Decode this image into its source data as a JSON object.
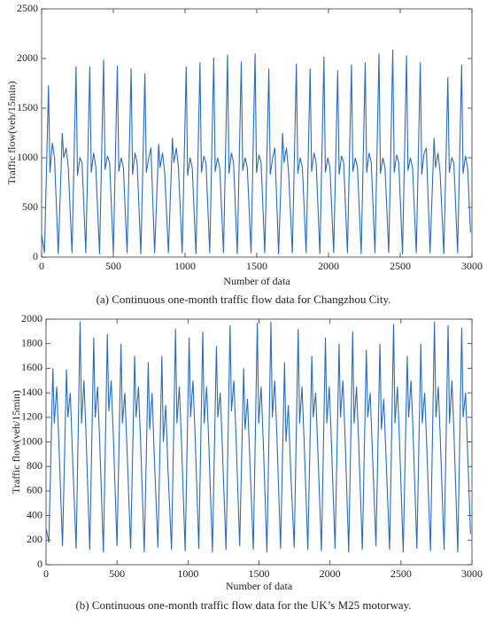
{
  "chart_data": [
    {
      "type": "line",
      "xlabel": "Number of data",
      "ylabel": "Traffic flow(veh/15min)",
      "caption": "(a) Continuous one-month traffic flow data for Changzhou City.",
      "color": "#2b6cb5",
      "xlim": [
        0,
        3000
      ],
      "xticks": [
        0,
        500,
        1000,
        1500,
        2000,
        2500,
        3000
      ],
      "ylim": [
        0,
        2500
      ],
      "yticks": [
        0,
        500,
        1000,
        1500,
        2000,
        2500
      ],
      "x": [
        0,
        20,
        48,
        58,
        75,
        90,
        116,
        144,
        154,
        171,
        186,
        212,
        240,
        250,
        267,
        282,
        308,
        336,
        346,
        363,
        378,
        404,
        432,
        442,
        459,
        474,
        500,
        528,
        538,
        555,
        570,
        596,
        624,
        634,
        651,
        666,
        692,
        720,
        730,
        747,
        762,
        788,
        816,
        826,
        843,
        858,
        884,
        912,
        922,
        939,
        954,
        980,
        1008,
        1018,
        1035,
        1050,
        1076,
        1104,
        1114,
        1131,
        1146,
        1172,
        1200,
        1210,
        1227,
        1242,
        1268,
        1296,
        1306,
        1323,
        1338,
        1364,
        1392,
        1402,
        1419,
        1434,
        1460,
        1488,
        1498,
        1515,
        1530,
        1556,
        1584,
        1594,
        1611,
        1626,
        1652,
        1680,
        1690,
        1707,
        1722,
        1748,
        1776,
        1786,
        1803,
        1818,
        1844,
        1872,
        1882,
        1899,
        1914,
        1940,
        1968,
        1978,
        1995,
        2010,
        2036,
        2064,
        2074,
        2091,
        2106,
        2132,
        2160,
        2170,
        2187,
        2202,
        2228,
        2256,
        2266,
        2283,
        2298,
        2324,
        2352,
        2362,
        2379,
        2394,
        2420,
        2448,
        2458,
        2475,
        2490,
        2516,
        2544,
        2554,
        2571,
        2586,
        2612,
        2640,
        2650,
        2667,
        2682,
        2708,
        2736,
        2746,
        2763,
        2778,
        2804,
        2832,
        2842,
        2859,
        2874,
        2900,
        2928,
        2938,
        2955,
        2970,
        2990
      ],
      "values": [
        230,
        40,
        1730,
        850,
        1150,
        1000,
        30,
        1250,
        1000,
        1100,
        900,
        40,
        1920,
        820,
        1000,
        950,
        40,
        1920,
        850,
        1050,
        900,
        30,
        1990,
        880,
        1020,
        950,
        40,
        1930,
        860,
        1000,
        900,
        40,
        1900,
        830,
        1050,
        950,
        30,
        1850,
        850,
        1000,
        1100,
        40,
        1140,
        900,
        1050,
        850,
        40,
        1200,
        950,
        1100,
        900,
        40,
        1920,
        820,
        1000,
        900,
        30,
        1960,
        850,
        1020,
        950,
        40,
        2010,
        860,
        1000,
        900,
        40,
        2040,
        840,
        1050,
        950,
        30,
        1970,
        870,
        1000,
        900,
        40,
        2050,
        850,
        1030,
        950,
        40,
        1900,
        830,
        1000,
        1100,
        30,
        1250,
        950,
        1100,
        850,
        40,
        1950,
        840,
        1000,
        900,
        40,
        1900,
        860,
        1050,
        950,
        30,
        2020,
        850,
        1000,
        900,
        40,
        1880,
        830,
        1020,
        950,
        40,
        1940,
        860,
        1000,
        900,
        30,
        1960,
        850,
        1050,
        950,
        40,
        2050,
        840,
        1000,
        900,
        40,
        2090,
        850,
        1030,
        950,
        30,
        2030,
        870,
        1000,
        900,
        40,
        1960,
        830,
        1050,
        1100,
        40,
        1200,
        900,
        1050,
        850,
        30,
        1810,
        850,
        1000,
        950,
        40,
        1940,
        840,
        1020,
        900,
        250
      ]
    },
    {
      "type": "line",
      "xlabel": "Number of data",
      "ylabel": "Traffic flow(veh/15min)",
      "caption": "(b) Continuous one-month traffic flow data for the UK’s M25 motorway.",
      "color": "#2b6cb5",
      "xlim": [
        0,
        3000
      ],
      "xticks": [
        0,
        500,
        1000,
        1500,
        2000,
        2500,
        3000
      ],
      "ylim": [
        0,
        2000
      ],
      "yticks": [
        0,
        200,
        400,
        600,
        800,
        1000,
        1200,
        1400,
        1600,
        1800,
        2000
      ],
      "x": [
        0,
        20,
        48,
        58,
        75,
        90,
        116,
        144,
        154,
        171,
        186,
        212,
        240,
        250,
        267,
        282,
        308,
        336,
        346,
        363,
        378,
        404,
        432,
        442,
        459,
        474,
        500,
        528,
        538,
        555,
        570,
        596,
        624,
        634,
        651,
        666,
        692,
        720,
        730,
        747,
        762,
        788,
        816,
        826,
        843,
        858,
        884,
        912,
        922,
        939,
        954,
        980,
        1008,
        1018,
        1035,
        1050,
        1076,
        1104,
        1114,
        1131,
        1146,
        1172,
        1200,
        1210,
        1227,
        1242,
        1268,
        1296,
        1306,
        1323,
        1338,
        1364,
        1392,
        1402,
        1419,
        1434,
        1460,
        1488,
        1498,
        1515,
        1530,
        1556,
        1584,
        1594,
        1611,
        1626,
        1652,
        1680,
        1690,
        1707,
        1722,
        1748,
        1776,
        1786,
        1803,
        1818,
        1844,
        1872,
        1882,
        1899,
        1914,
        1940,
        1968,
        1978,
        1995,
        2010,
        2036,
        2064,
        2074,
        2091,
        2106,
        2132,
        2160,
        2170,
        2187,
        2202,
        2228,
        2256,
        2266,
        2283,
        2298,
        2324,
        2352,
        2362,
        2379,
        2394,
        2420,
        2448,
        2458,
        2475,
        2490,
        2516,
        2544,
        2554,
        2571,
        2586,
        2612,
        2640,
        2650,
        2667,
        2682,
        2708,
        2736,
        2746,
        2763,
        2778,
        2804,
        2832,
        2842,
        2859,
        2874,
        2900,
        2928,
        2938,
        2955,
        2970,
        2990
      ],
      "values": [
        300,
        180,
        1600,
        1150,
        1450,
        1000,
        150,
        1590,
        1200,
        1400,
        900,
        130,
        1980,
        1150,
        1500,
        1050,
        120,
        1850,
        1200,
        1450,
        1000,
        100,
        1880,
        1250,
        1500,
        1050,
        150,
        1800,
        1150,
        1400,
        950,
        130,
        1700,
        1200,
        1450,
        1000,
        100,
        1650,
        1100,
        1400,
        900,
        140,
        1700,
        1000,
        1300,
        800,
        120,
        1920,
        1150,
        1450,
        1000,
        110,
        1850,
        1200,
        1500,
        1050,
        130,
        1900,
        1150,
        1450,
        1000,
        100,
        1780,
        1200,
        1400,
        950,
        120,
        1950,
        1250,
        1500,
        1050,
        150,
        1600,
        1100,
        1350,
        900,
        120,
        1970,
        1150,
        1450,
        1000,
        100,
        1980,
        1200,
        1500,
        1050,
        130,
        1650,
        1000,
        1300,
        800,
        140,
        1920,
        1150,
        1450,
        1000,
        120,
        1700,
        1200,
        1400,
        950,
        110,
        1850,
        1150,
        1450,
        1000,
        130,
        1800,
        1200,
        1500,
        1050,
        100,
        1900,
        1150,
        1450,
        1000,
        120,
        1750,
        1200,
        1400,
        950,
        150,
        1800,
        1100,
        1350,
        900,
        120,
        1960,
        1150,
        1450,
        1000,
        100,
        1700,
        1200,
        1500,
        1050,
        130,
        1800,
        1150,
        1400,
        950,
        110,
        1980,
        1200,
        1450,
        1000,
        120,
        1950,
        1150,
        1500,
        1050,
        100,
        1930,
        1200,
        1400,
        900,
        250
      ]
    }
  ]
}
